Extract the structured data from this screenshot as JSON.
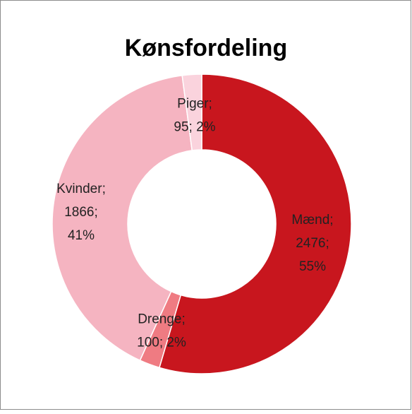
{
  "chart_data": {
    "type": "donut",
    "title": "Kønsfordeling",
    "categories": [
      "Mænd",
      "Drenge",
      "Kvinder",
      "Piger"
    ],
    "values": [
      2476,
      100,
      1866,
      95
    ],
    "colors": [
      "#c8161e",
      "#ef7b82",
      "#f5b4c1",
      "#fad3dd"
    ],
    "data_labels": [
      [
        "Mænd;",
        "2476;",
        "55%"
      ],
      [
        "Drenge;",
        "100; 2%"
      ],
      [
        "Kvinder;",
        "1866;",
        "41%"
      ],
      [
        "Piger;",
        "95; 2%"
      ]
    ]
  }
}
